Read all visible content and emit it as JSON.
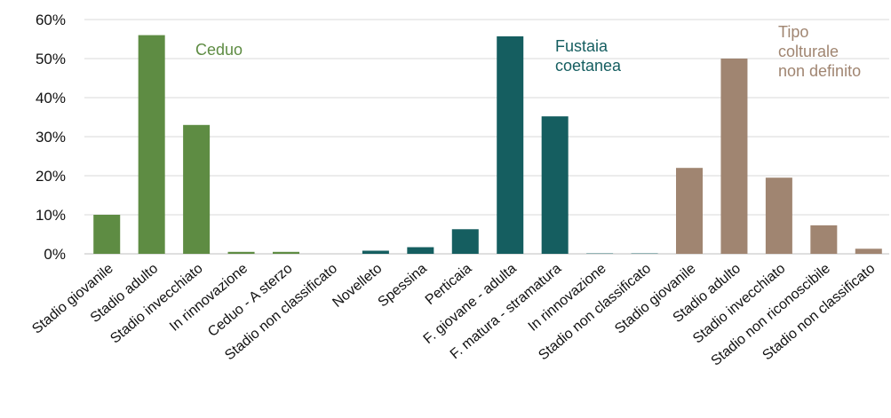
{
  "chart_data": {
    "type": "bar",
    "ylim": [
      0,
      60
    ],
    "yticks": [
      "0%",
      "10%",
      "20%",
      "30%",
      "40%",
      "50%",
      "60%"
    ],
    "ytick_values": [
      0,
      10,
      20,
      30,
      40,
      50,
      60
    ],
    "grid": true,
    "groups": [
      {
        "label_lines": [
          "Ceduo"
        ],
        "color": "#5e8c43",
        "categories": [
          "Stadio giovanile",
          "Stadio adulto",
          "Stadio invecchiato",
          "In rinnovazione",
          "Ceduo - A sterzo",
          "Stadio non classificato"
        ],
        "values": [
          10,
          56,
          33,
          0.5,
          0.5,
          0
        ]
      },
      {
        "label_lines": [
          "Fustaia",
          "coetanea"
        ],
        "color": "#155e60",
        "categories": [
          "Novelleto",
          "Spessina",
          "Perticaia",
          "F. giovane - adulta",
          "F. matura - stramatura",
          "In rinnovazione",
          "Stadio non classificato"
        ],
        "values": [
          0.8,
          1.7,
          6.3,
          55.7,
          35.2,
          0.1,
          0.1
        ]
      },
      {
        "label_lines": [
          "Tipo",
          "colturale",
          "non definito"
        ],
        "color": "#a08571",
        "categories": [
          "Stadio giovanile",
          "Stadio adulto",
          "Stadio invecchiato",
          "Stadio non riconoscibile",
          "Stadio non classificato"
        ],
        "values": [
          22,
          50,
          19.5,
          7.3,
          1.3
        ]
      }
    ]
  }
}
